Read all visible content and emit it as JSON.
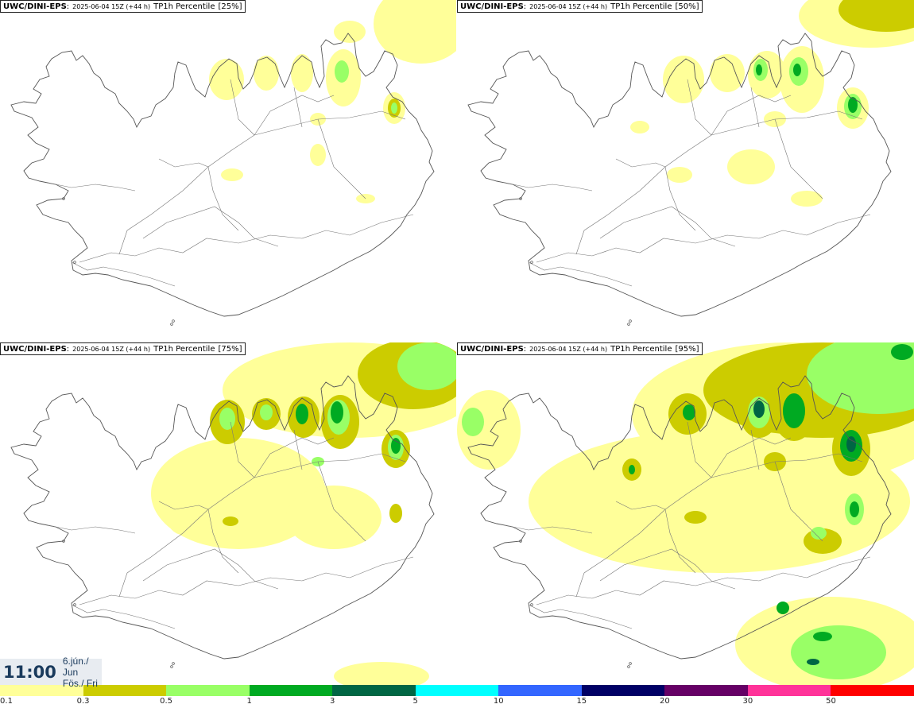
{
  "panels": [
    {
      "model": "UWC/DINI-EPS",
      "run": "2025-06-04 15Z (+44 h)",
      "param": "TP1h Percentile",
      "percentile": "25%"
    },
    {
      "model": "UWC/DINI-EPS",
      "run": "2025-06-04 15Z (+44 h)",
      "param": "TP1h Percentile",
      "percentile": "50%"
    },
    {
      "model": "UWC/DINI-EPS",
      "run": "2025-06-04 15Z (+44 h)",
      "param": "TP1h Percentile",
      "percentile": "75%"
    },
    {
      "model": "UWC/DINI-EPS",
      "run": "2025-06-04 15Z (+44 h)",
      "param": "TP1h Percentile",
      "percentile": "95%"
    }
  ],
  "time": {
    "clock": "11:00",
    "date_line1": "6.jún./ Jun",
    "date_line2": "Fös./ Fri"
  },
  "colorbar": {
    "labels": [
      "0.1",
      "0.3",
      "0.5",
      "1",
      "3",
      "5",
      "10",
      "15",
      "20",
      "30",
      "50"
    ],
    "colors": [
      "#ffff99",
      "#cccc00",
      "#99ff66",
      "#00aa22",
      "#006644",
      "#00ffff",
      "#3366ff",
      "#000066",
      "#660066",
      "#ff3399",
      "#ff0000"
    ]
  },
  "palette": {
    "land": "#ffffff",
    "coast": "#555555",
    "lvl1": "#ffff99",
    "lvl2": "#cccc00",
    "lvl3": "#99ff66",
    "lvl4": "#00aa22",
    "lvl5": "#006644"
  }
}
